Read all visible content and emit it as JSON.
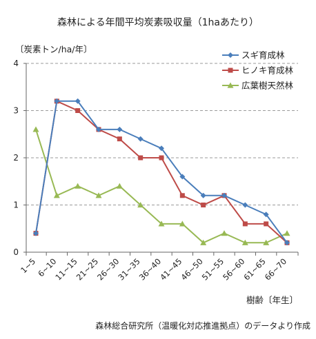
{
  "chart_data": {
    "type": "line",
    "title": "森林による年間平均炭素吸収量（1haあたり）",
    "ylabel": "〔炭素トン/ha/年〕",
    "xlabel": "樹齢〔年生〕",
    "source": "森林総合研究所（温暖化対応推進拠点）のデータより作成",
    "ylim": [
      0,
      4
    ],
    "yticks": [
      "0",
      "1",
      "2",
      "3",
      "4"
    ],
    "grid": "horizontal-dashed",
    "legend_position": "top-right",
    "categories": [
      "1~5",
      "6~10",
      "11~15",
      "21~25",
      "26~30",
      "31~35",
      "36~40",
      "41~45",
      "46~50",
      "51~55",
      "56~60",
      "61~65",
      "66~70"
    ],
    "series": [
      {
        "name": "スギ育成林",
        "color": "#4a7ebb",
        "marker": "diamond",
        "values": [
          0.4,
          3.2,
          3.2,
          2.6,
          2.6,
          2.4,
          2.2,
          1.6,
          1.2,
          1.2,
          1.0,
          0.8,
          0.2
        ]
      },
      {
        "name": "ヒノキ育成林",
        "color": "#be4b48",
        "marker": "square",
        "values": [
          0.4,
          3.2,
          3.0,
          2.6,
          2.4,
          2.0,
          2.0,
          1.2,
          1.0,
          1.2,
          0.6,
          0.6,
          0.2
        ]
      },
      {
        "name": "広葉樹天然林",
        "color": "#98b954",
        "marker": "triangle",
        "values": [
          2.6,
          1.2,
          1.4,
          1.2,
          1.4,
          1.0,
          0.6,
          0.6,
          0.2,
          0.4,
          0.2,
          0.2,
          0.4
        ]
      }
    ]
  }
}
